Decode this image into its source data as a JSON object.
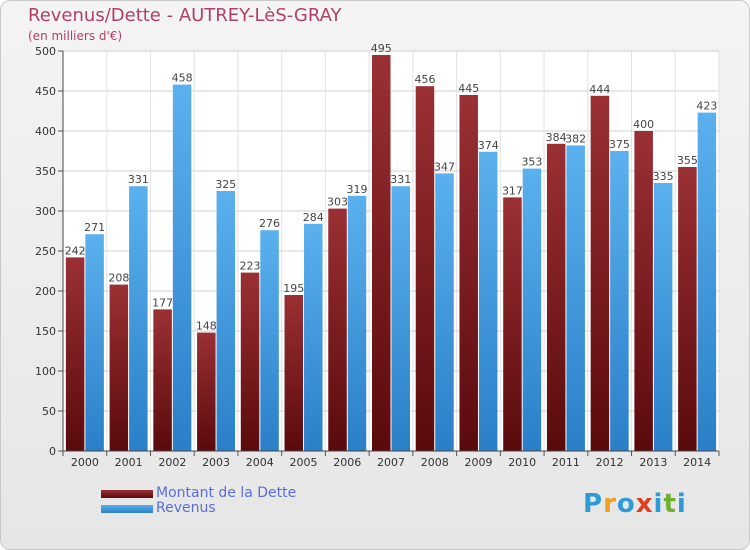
{
  "header": {
    "title": "Revenus/Dette - AUTREY-LèS-GRAY",
    "subtitle": "(en milliers d'€)"
  },
  "legend": {
    "items": [
      {
        "label": "Montant de la Dette",
        "color": "#7a1f22"
      },
      {
        "label": "Revenus",
        "color": "#4aa3e6"
      }
    ]
  },
  "logo": {
    "letters": [
      "P",
      "r",
      "o",
      "x",
      "i",
      "t",
      "i"
    ],
    "colors": [
      "#2e9ad6",
      "#f0a020",
      "#2e9ad6",
      "#e04020",
      "#2e9ad6",
      "#70b030",
      "#2e9ad6"
    ]
  },
  "chart_data": {
    "type": "bar",
    "title": "Revenus/Dette - AUTREY-LèS-GRAY",
    "ylabel": "(en milliers d'€)",
    "xlabel": "",
    "ylim": [
      0,
      500
    ],
    "yticks": [
      0,
      50,
      100,
      150,
      200,
      250,
      300,
      350,
      400,
      450,
      500
    ],
    "grid": true,
    "legend_position": "bottom-left",
    "categories": [
      "2000",
      "2001",
      "2002",
      "2003",
      "2004",
      "2005",
      "2006",
      "2007",
      "2008",
      "2009",
      "2010",
      "2011",
      "2012",
      "2013",
      "2014"
    ],
    "series": [
      {
        "name": "Montant de la Dette",
        "color": "#7a1f22",
        "values": [
          242,
          208,
          177,
          148,
          223,
          195,
          303,
          495,
          456,
          445,
          317,
          384,
          444,
          400,
          355
        ]
      },
      {
        "name": "Revenus",
        "color": "#4aa3e6",
        "values": [
          271,
          331,
          458,
          325,
          276,
          284,
          319,
          331,
          347,
          374,
          353,
          382,
          375,
          335,
          423
        ]
      }
    ]
  }
}
